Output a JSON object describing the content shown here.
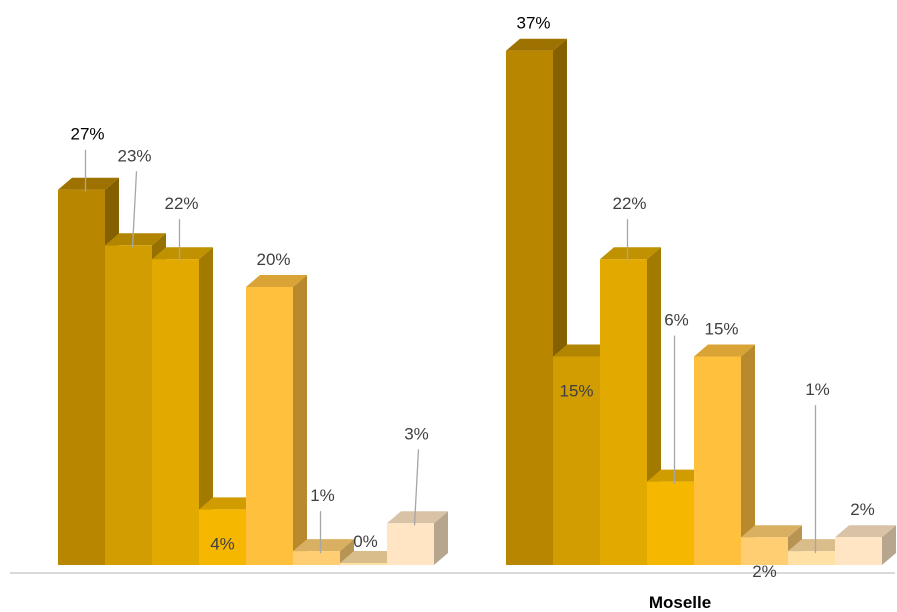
{
  "chart_data": {
    "type": "bar",
    "categories": [
      "",
      "Moselle"
    ],
    "series_count": 8,
    "groups": [
      {
        "category": "",
        "values": [
          27,
          23,
          22,
          4,
          20,
          1,
          0,
          3
        ],
        "labels": [
          "27%",
          "23%",
          "22%",
          "4%",
          "20%",
          "1%",
          "0%",
          "3%"
        ]
      },
      {
        "category": "Moselle",
        "values": [
          37,
          15,
          22,
          6,
          15,
          2,
          1,
          2
        ],
        "labels": [
          "37%",
          "15%",
          "22%",
          "6%",
          "15%",
          "2%",
          "1%",
          "2%"
        ]
      }
    ],
    "colors": [
      "#B98600",
      "#D19D00",
      "#E2AA00",
      "#F6B700",
      "#FFC03E",
      "#FFCE73",
      "#FFE0A5",
      "#FFE5C4"
    ],
    "label_colors": [
      "#000000",
      "#404040",
      "#404040",
      "#404040",
      "#404040",
      "#404040",
      "#404040",
      "#404040"
    ],
    "style": "3d-clustered-column",
    "grid": false,
    "legend": "none",
    "ylim": [
      0,
      40
    ]
  }
}
